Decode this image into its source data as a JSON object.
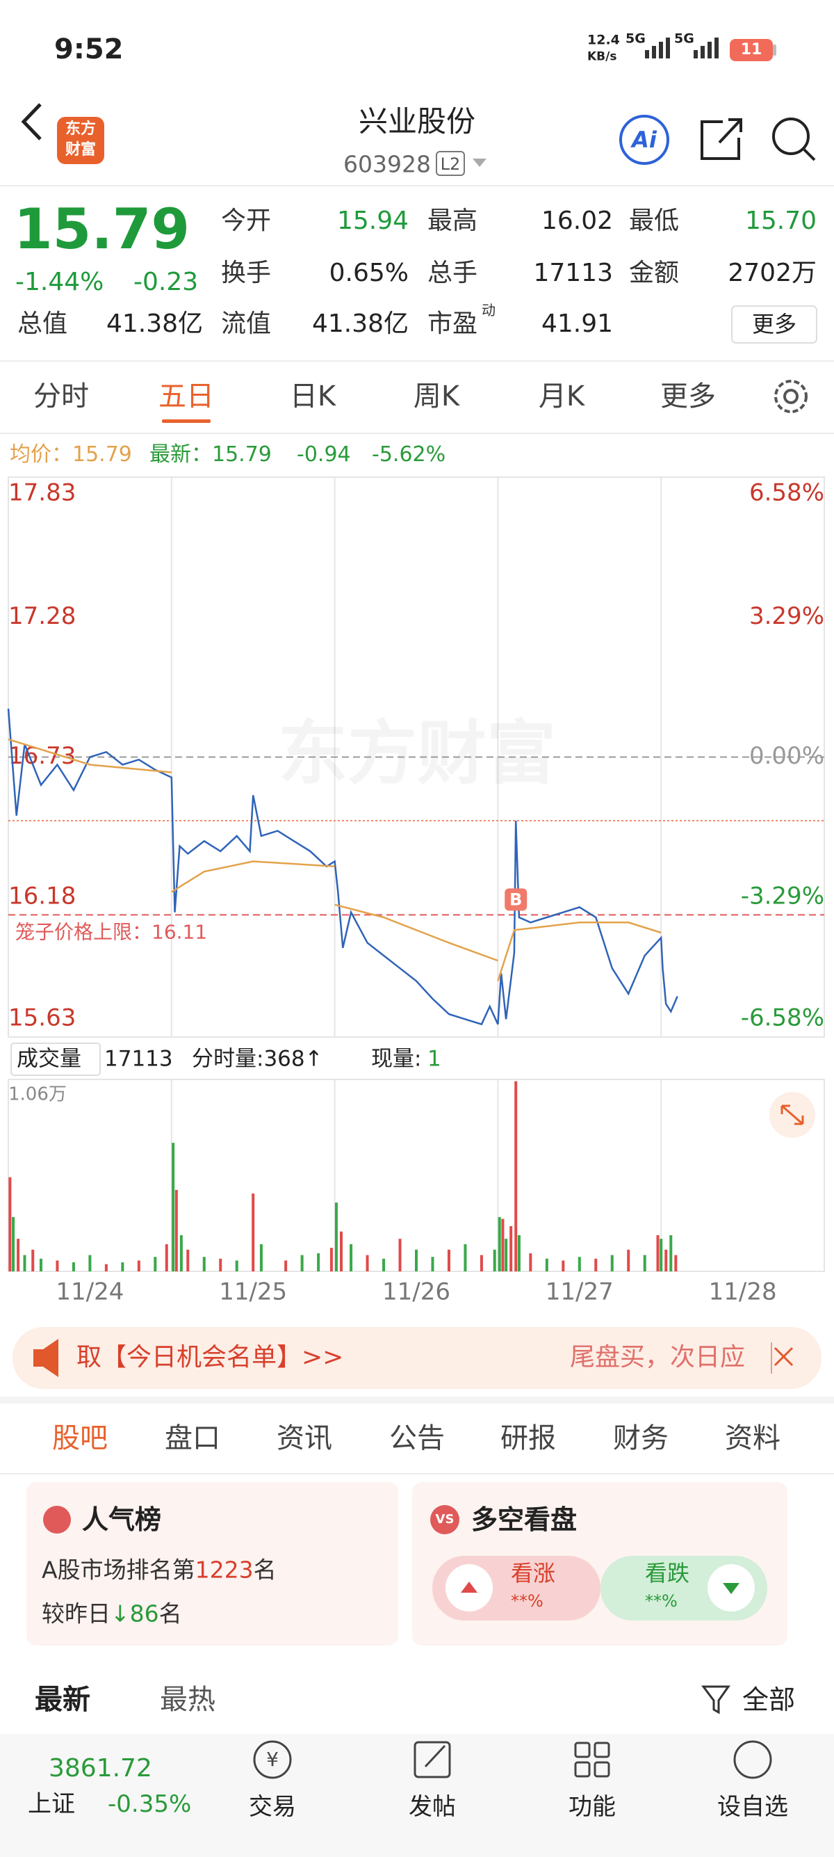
{
  "status": {
    "time": "9:52",
    "speed": "12.4",
    "speed_unit": "KB/s",
    "net1": "5G",
    "net2": "5G",
    "battery": "11"
  },
  "header": {
    "logo": [
      "东方",
      "财富"
    ],
    "title": "兴业股份",
    "code": "603928",
    "badge": "L2",
    "ai": "Ai"
  },
  "quote": {
    "price": "15.79",
    "change_pct": "-1.44%",
    "change": "-0.23",
    "fields": [
      [
        {
          "label": "今开",
          "value": "15.94"
        },
        {
          "label": "最高",
          "value": "16.02"
        },
        {
          "label": "最低",
          "value": "15.70"
        }
      ],
      [
        {
          "label": "换手",
          "value": "0.65%"
        },
        {
          "label": "总手",
          "value": "17113"
        },
        {
          "label": "金额",
          "value": "2702万"
        }
      ],
      [
        {
          "label": "总值",
          "value": "41.38亿"
        },
        {
          "label": "流值",
          "value": "41.38亿"
        },
        {
          "label": "市盈",
          "sup": "动",
          "value": "41.91"
        }
      ]
    ],
    "more": "更多"
  },
  "tabs": [
    "分时",
    "五日",
    "日K",
    "周K",
    "月K",
    "更多"
  ],
  "chart_info": {
    "avg": "均价：15.79",
    "last": "最新：15.79",
    "change": "-0.94",
    "change_pct": "-5.62%"
  },
  "chart_data": [
    {
      "type": "line",
      "watermark": "东方财富",
      "xlim": [
        0,
        5
      ],
      "ylim": [
        15.63,
        17.83
      ],
      "yticks": [
        17.83,
        17.28,
        16.73,
        16.18,
        15.63
      ],
      "tick_color": "#c8382c",
      "y2lim": [
        -6.58,
        6.58
      ],
      "y2ticks": [
        {
          "value": 6.58,
          "label": "6.58%",
          "color": "#c8382c"
        },
        {
          "value": 3.29,
          "label": "3.29%",
          "color": "#c8382c"
        },
        {
          "value": 0,
          "label": "0.00%",
          "color": "#999999"
        },
        {
          "value": -3.29,
          "label": "-3.29%",
          "color": "#2a9a3a"
        },
        {
          "value": -6.58,
          "label": "-6.58%",
          "color": "#2a9a3a"
        }
      ],
      "reference_lines": [
        {
          "value": 16.73,
          "color": "#9a9a9a",
          "style": "dashed"
        },
        {
          "value": 16.48,
          "color": "#f08a6a",
          "style": "dotted"
        }
      ],
      "cage_line": {
        "text": "笼子价格上限：16.11",
        "value": 16.11,
        "color": "#e05a5a"
      },
      "marker": {
        "x": 3.11,
        "y": 16.17,
        "label": "B",
        "color": "#f07a6a"
      },
      "series": [
        {
          "color": "#2f63b8",
          "x": [
            0,
            0.05,
            0.1,
            0.2,
            0.3,
            0.4,
            0.5,
            0.6,
            0.7,
            0.8,
            0.9,
            1.0,
            1.02,
            1.05,
            1.1,
            1.2,
            1.3,
            1.4,
            1.48,
            1.5,
            1.55,
            1.65,
            1.75,
            1.85,
            1.95,
            2.0,
            2.02,
            2.05,
            2.1,
            2.2,
            2.3,
            2.4,
            2.5,
            2.6,
            2.7,
            2.8,
            2.9,
            2.95,
            3.0,
            3.02,
            3.05,
            3.1,
            3.11,
            3.13,
            3.2,
            3.3,
            3.4,
            3.5,
            3.6,
            3.7,
            3.8,
            3.9,
            4.0,
            4.01,
            4.03,
            4.06,
            4.1
          ],
          "values": [
            16.92,
            16.5,
            16.78,
            16.62,
            16.7,
            16.6,
            16.73,
            16.75,
            16.7,
            16.72,
            16.68,
            16.65,
            16.12,
            16.38,
            16.35,
            16.4,
            16.36,
            16.42,
            16.36,
            16.58,
            16.42,
            16.44,
            16.4,
            16.36,
            16.3,
            16.32,
            16.2,
            15.98,
            16.12,
            16.0,
            15.95,
            15.9,
            15.85,
            15.78,
            15.72,
            15.7,
            15.68,
            15.75,
            15.68,
            15.88,
            15.7,
            15.96,
            16.48,
            16.1,
            16.08,
            16.1,
            16.12,
            16.14,
            16.1,
            15.9,
            15.8,
            15.95,
            16.02,
            15.9,
            15.76,
            15.73,
            15.79
          ]
        },
        {
          "color": "#e3a24a",
          "x": [
            0,
            0.5,
            1.0,
            1.0,
            1.0,
            1.2,
            1.5,
            2.0,
            2.0,
            2.0,
            2.3,
            2.7,
            3.0,
            3.0,
            3.0,
            3.1,
            3.5,
            3.8,
            4.0
          ],
          "values": [
            16.8,
            16.7,
            16.67,
            null,
            16.2,
            16.28,
            16.32,
            16.3,
            null,
            16.15,
            16.1,
            16.0,
            15.93,
            null,
            15.85,
            16.05,
            16.08,
            16.08,
            16.04
          ]
        }
      ]
    },
    {
      "type": "bar",
      "header": {
        "label": "成交量",
        "total": "17113",
        "tick_vol": "分时量:368↑",
        "cur_label": "现量:",
        "cur": "1"
      },
      "xlim": [
        0,
        5
      ],
      "ylim": [
        0,
        10600
      ],
      "yticks": [
        {
          "value": 10600,
          "label": "1.06万"
        }
      ],
      "xticks": [
        {
          "value": 0.5,
          "label": "11/24"
        },
        {
          "value": 1.5,
          "label": "11/25"
        },
        {
          "value": 2.5,
          "label": "11/26"
        },
        {
          "value": 3.5,
          "label": "11/27"
        },
        {
          "value": 4.5,
          "label": "11/28"
        }
      ],
      "x": [
        0.01,
        0.03,
        0.06,
        0.1,
        0.15,
        0.2,
        0.3,
        0.4,
        0.5,
        0.6,
        0.7,
        0.8,
        0.9,
        0.97,
        1.01,
        1.03,
        1.06,
        1.1,
        1.2,
        1.3,
        1.4,
        1.5,
        1.55,
        1.7,
        1.8,
        1.9,
        1.98,
        2.01,
        2.04,
        2.1,
        2.2,
        2.3,
        2.4,
        2.5,
        2.6,
        2.7,
        2.8,
        2.9,
        2.98,
        3.01,
        3.03,
        3.05,
        3.08,
        3.11,
        3.13,
        3.2,
        3.3,
        3.4,
        3.5,
        3.6,
        3.7,
        3.8,
        3.9,
        3.98,
        4.0,
        4.03,
        4.06,
        4.09
      ],
      "values": [
        5200,
        3000,
        1800,
        900,
        1200,
        700,
        600,
        500,
        900,
        400,
        500,
        600,
        800,
        1500,
        7100,
        4500,
        2000,
        1200,
        800,
        700,
        600,
        4300,
        1500,
        600,
        900,
        1000,
        1300,
        3800,
        2200,
        1500,
        900,
        700,
        1800,
        1200,
        800,
        1200,
        1500,
        900,
        1200,
        3000,
        2900,
        1800,
        2500,
        10500,
        2000,
        1000,
        700,
        600,
        800,
        700,
        900,
        1200,
        900,
        2000,
        1800,
        1200,
        2000,
        900
      ],
      "colors": [
        "#e04a4a",
        "#3aa84a",
        "#e04a4a",
        "#3aa84a",
        "#e04a4a",
        "#3aa84a",
        "#e04a4a",
        "#3aa84a",
        "#3aa84a",
        "#e04a4a",
        "#3aa84a",
        "#e04a4a",
        "#3aa84a",
        "#e04a4a",
        "#3aa84a",
        "#e04a4a",
        "#3aa84a",
        "#e04a4a",
        "#3aa84a",
        "#e04a4a",
        "#3aa84a",
        "#e04a4a",
        "#3aa84a",
        "#e04a4a",
        "#3aa84a",
        "#3aa84a",
        "#e04a4a",
        "#3aa84a",
        "#e04a4a",
        "#3aa84a",
        "#e04a4a",
        "#3aa84a",
        "#e04a4a",
        "#3aa84a",
        "#3aa84a",
        "#e04a4a",
        "#3aa84a",
        "#e04a4a",
        "#3aa84a",
        "#3aa84a",
        "#e04a4a",
        "#3aa84a",
        "#e04a4a",
        "#e04a4a",
        "#3aa84a",
        "#e04a4a",
        "#3aa84a",
        "#e04a4a",
        "#3aa84a",
        "#e04a4a",
        "#3aa84a",
        "#e04a4a",
        "#3aa84a",
        "#e04a4a",
        "#3aa84a",
        "#e04a4a",
        "#3aa84a",
        "#e04a4a"
      ]
    }
  ],
  "banner": {
    "left": "取【今日机会名单】>>",
    "right": "尾盘买，次日应"
  },
  "sections": [
    "股吧",
    "盘口",
    "资讯",
    "公告",
    "研报",
    "财务",
    "资料"
  ],
  "cards": {
    "rank": {
      "title": "人气榜",
      "line1": "A股市场排名第",
      "rank": "1223",
      "unit": "名",
      "line2": "较昨日",
      "delta": "86",
      "unit2": "名"
    },
    "vote": {
      "icon": "VS",
      "title": "多空看盘",
      "up": "看涨",
      "up_pct": "**%",
      "down": "看跌",
      "down_pct": "**%"
    }
  },
  "feed": {
    "latest": "最新",
    "hot": "最热",
    "all": "全部"
  },
  "nav": {
    "index_value": "3861.72",
    "index_name": "上证",
    "index_change": "-0.35%",
    "items": [
      "交易",
      "发帖",
      "功能",
      "设自选"
    ],
    "trade_icon": "¥"
  }
}
